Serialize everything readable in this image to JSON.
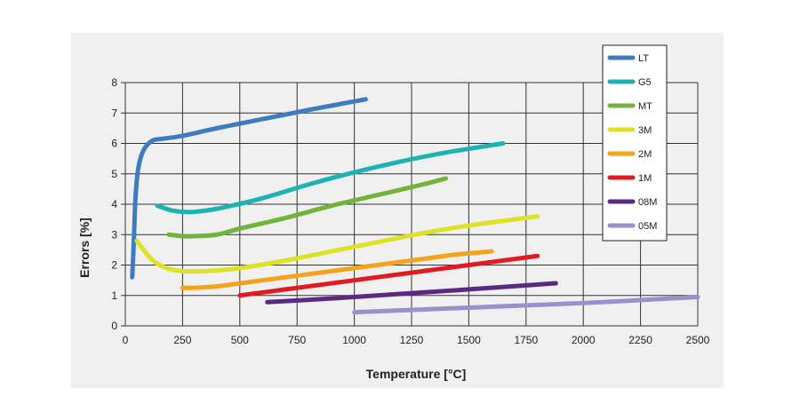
{
  "chart_data": {
    "type": "line",
    "xlabel": "Temperature [°C]",
    "ylabel": "Errors [%]",
    "xlim": [
      0,
      2500
    ],
    "ylim": [
      0,
      8
    ],
    "xticks": [
      0,
      250,
      500,
      750,
      1000,
      1250,
      1500,
      1750,
      2000,
      2250,
      2500
    ],
    "yticks": [
      0,
      1,
      2,
      3,
      4,
      5,
      6,
      7,
      8
    ],
    "grid": true,
    "legend": "top-right",
    "series": [
      {
        "name": "LT",
        "color": "#3d7cc1",
        "x": [
          30,
          35,
          40,
          45,
          55,
          70,
          90,
          120,
          160,
          250,
          400,
          600,
          800,
          1050
        ],
        "y": [
          1.6,
          2.4,
          3.4,
          4.3,
          5.1,
          5.6,
          5.9,
          6.1,
          6.15,
          6.25,
          6.5,
          6.8,
          7.1,
          7.45
        ]
      },
      {
        "name": "G5",
        "color": "#1eb3b3",
        "x": [
          140,
          200,
          250,
          300,
          400,
          600,
          800,
          1000,
          1200,
          1400,
          1650
        ],
        "y": [
          3.95,
          3.8,
          3.75,
          3.75,
          3.85,
          4.2,
          4.65,
          5.05,
          5.4,
          5.7,
          6.0
        ]
      },
      {
        "name": "MT",
        "color": "#72b33c",
        "x": [
          190,
          250,
          300,
          400,
          500,
          700,
          900,
          1100,
          1300,
          1400
        ],
        "y": [
          3.0,
          2.95,
          2.95,
          3.0,
          3.2,
          3.55,
          3.95,
          4.3,
          4.65,
          4.85
        ]
      },
      {
        "name": "3M",
        "color": "#dde227",
        "x": [
          50,
          80,
          120,
          180,
          250,
          350,
          500,
          700,
          900,
          1100,
          1300,
          1500,
          1800
        ],
        "y": [
          2.8,
          2.5,
          2.15,
          1.9,
          1.8,
          1.8,
          1.9,
          2.15,
          2.45,
          2.75,
          3.05,
          3.3,
          3.6
        ]
      },
      {
        "name": "2M",
        "color": "#f7a21b",
        "x": [
          250,
          300,
          400,
          500,
          700,
          900,
          1100,
          1300,
          1450,
          1600
        ],
        "y": [
          1.25,
          1.25,
          1.3,
          1.4,
          1.6,
          1.8,
          2.0,
          2.2,
          2.35,
          2.45
        ]
      },
      {
        "name": "1M",
        "color": "#e01b22",
        "x": [
          500,
          700,
          900,
          1100,
          1300,
          1500,
          1800
        ],
        "y": [
          1.0,
          1.2,
          1.4,
          1.6,
          1.8,
          2.0,
          2.3
        ]
      },
      {
        "name": "08M",
        "color": "#5a2a82",
        "x": [
          620,
          900,
          1200,
          1500,
          1880
        ],
        "y": [
          0.78,
          0.9,
          1.05,
          1.2,
          1.4
        ]
      },
      {
        "name": "05M",
        "color": "#9c8fcc",
        "x": [
          1000,
          1500,
          2000,
          2500
        ],
        "y": [
          0.45,
          0.6,
          0.75,
          0.95
        ]
      }
    ]
  }
}
